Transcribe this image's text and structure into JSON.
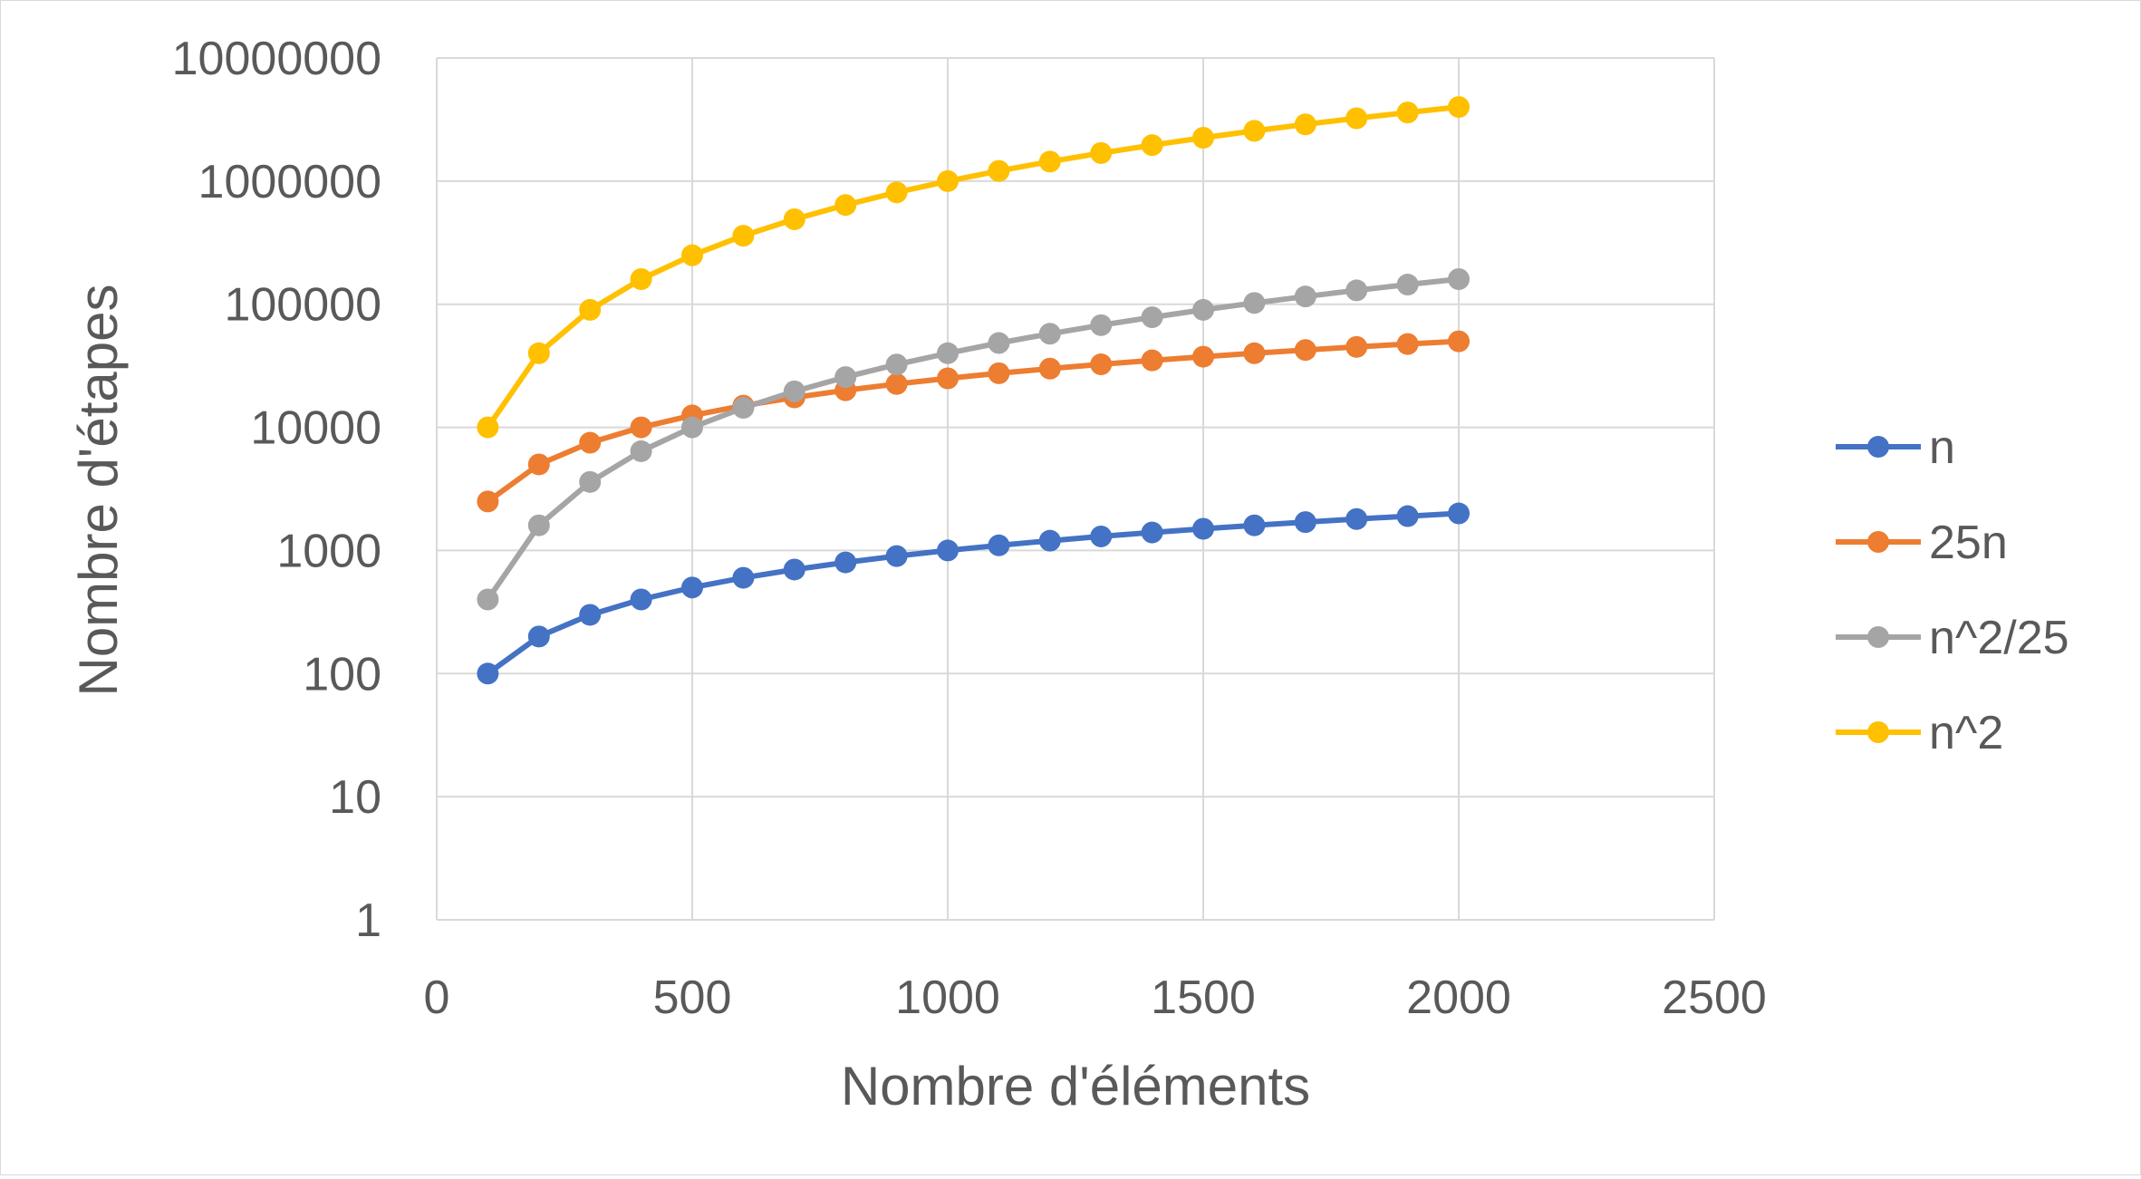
{
  "chart_data": {
    "type": "line",
    "title": "",
    "xlabel": "Nombre d'éléments",
    "ylabel": "Nombre d'étapes",
    "xlim": [
      0,
      2500
    ],
    "xticks": [
      0,
      500,
      1000,
      1500,
      2000,
      2500
    ],
    "xtick_labels": [
      "0",
      "500",
      "1000",
      "1500",
      "2000",
      "2500"
    ],
    "yscale": "log",
    "ylim": [
      1,
      10000000
    ],
    "yticks": [
      1,
      10,
      100,
      1000,
      10000,
      100000,
      1000000,
      10000000
    ],
    "ytick_labels": [
      "1",
      "10",
      "100",
      "1000",
      "10000",
      "100000",
      "1000000",
      "10000000"
    ],
    "grid": true,
    "legend_position": "right",
    "x": [
      100,
      200,
      300,
      400,
      500,
      600,
      700,
      800,
      900,
      1000,
      1100,
      1200,
      1300,
      1400,
      1500,
      1600,
      1700,
      1800,
      1900,
      2000
    ],
    "series": [
      {
        "name": "n",
        "color": "#4472C4",
        "values": [
          100,
          200,
          300,
          400,
          500,
          600,
          700,
          800,
          900,
          1000,
          1100,
          1200,
          1300,
          1400,
          1500,
          1600,
          1700,
          1800,
          1900,
          2000
        ]
      },
      {
        "name": "25n",
        "color": "#ED7D31",
        "values": [
          2500,
          5000,
          7500,
          10000,
          12500,
          15000,
          17500,
          20000,
          22500,
          25000,
          27500,
          30000,
          32500,
          35000,
          37500,
          40000,
          42500,
          45000,
          47500,
          50000
        ]
      },
      {
        "name": "n^2/25",
        "color": "#A5A5A5",
        "values": [
          400,
          1600,
          3600,
          6400,
          10000,
          14400,
          19600,
          25600,
          32400,
          40000,
          48400,
          57600,
          67600,
          78400,
          90000,
          102400,
          115600,
          129600,
          144400,
          160000
        ]
      },
      {
        "name": "n^2",
        "color": "#FFC000",
        "values": [
          10000,
          40000,
          90000,
          160000,
          250000,
          360000,
          490000,
          640000,
          810000,
          1000000,
          1210000,
          1440000,
          1690000,
          1960000,
          2250000,
          2560000,
          2890000,
          3240000,
          3610000,
          4000000
        ]
      }
    ],
    "gridline_color": "#d9d9d9"
  }
}
